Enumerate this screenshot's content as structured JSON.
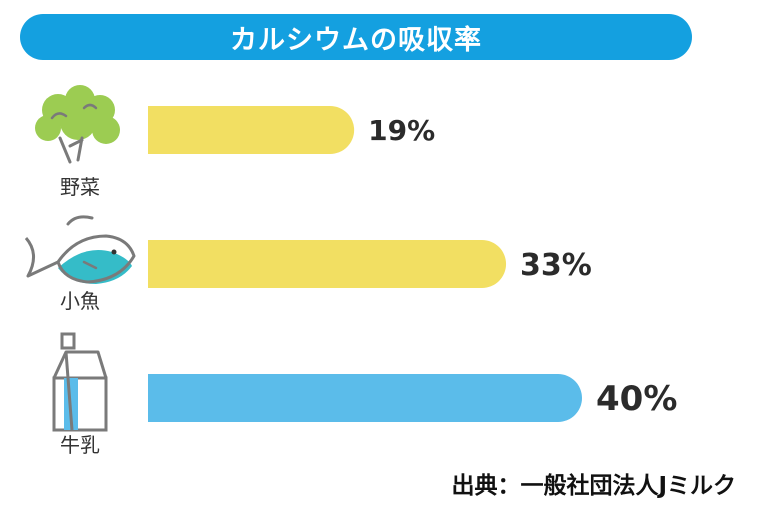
{
  "chart_data": {
    "type": "bar",
    "orientation": "horizontal",
    "title": "カルシウムの吸収率",
    "categories": [
      "野菜",
      "小魚",
      "牛乳"
    ],
    "values": [
      19,
      33,
      40
    ],
    "value_labels": [
      "19%",
      "33%",
      "40%"
    ],
    "unit": "%",
    "bar_colors": [
      "#f2df62",
      "#f2df62",
      "#5bbcea"
    ],
    "icons": [
      "vegetable-icon",
      "fish-icon",
      "milk-carton-icon"
    ],
    "xlim": [
      0,
      40
    ],
    "grid": false,
    "legend": "none"
  },
  "source": "出典：一般社団法人Jミルク",
  "colors": {
    "banner": "#14a0e0",
    "bar_yellow": "#f2df62",
    "bar_blue": "#5bbcea",
    "icon_green": "#9ccc52",
    "icon_teal": "#35bcc8",
    "icon_line": "#7a7a7a"
  }
}
